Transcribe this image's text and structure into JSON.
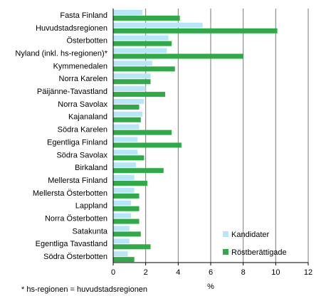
{
  "chart_data": {
    "type": "bar",
    "orientation": "horizontal",
    "categories": [
      "Fasta Finland",
      "Huvudstadsregionen",
      "Österbotten",
      "Nyland (inkl. hs-regionen)*",
      "Kymmenedalen",
      "Norra Karelen",
      "Päijänne-Tavastland",
      "Norra Savolax",
      "Kajanaland",
      "Södra Karelen",
      "Egentliga Finland",
      "Södra Savolax",
      "Birkaland",
      "Mellersta Finland",
      "Mellersta Österbotten",
      "Lappland",
      "Norra Österbotten",
      "Satakunta",
      "Egentliga Tavastland",
      "Södra Österbotten"
    ],
    "series": [
      {
        "name": "Kandidater",
        "color": "#b7e6f9",
        "values": [
          1.8,
          5.5,
          3.4,
          3.3,
          2.4,
          2.3,
          2.0,
          1.9,
          1.8,
          1.6,
          1.5,
          1.5,
          1.4,
          1.3,
          1.3,
          1.1,
          1.1,
          1.0,
          1.0,
          0.9
        ]
      },
      {
        "name": "Röstberättigade",
        "color": "#2eab47",
        "values": [
          4.1,
          10.1,
          3.6,
          8.0,
          3.8,
          2.3,
          3.2,
          1.6,
          1.7,
          3.6,
          4.2,
          1.9,
          3.1,
          2.1,
          1.6,
          1.6,
          1.6,
          1.7,
          2.3,
          1.3
        ]
      }
    ],
    "xlim": [
      0,
      12
    ],
    "xticks": [
      "0",
      "2",
      "4",
      "6",
      "8",
      "10",
      "12"
    ],
    "xlabel": "%",
    "ylabel": "",
    "title": "",
    "grid": "vertical",
    "legend_position": "bottom-right",
    "footnote": "* hs-regionen = huvudstadsregionen"
  }
}
